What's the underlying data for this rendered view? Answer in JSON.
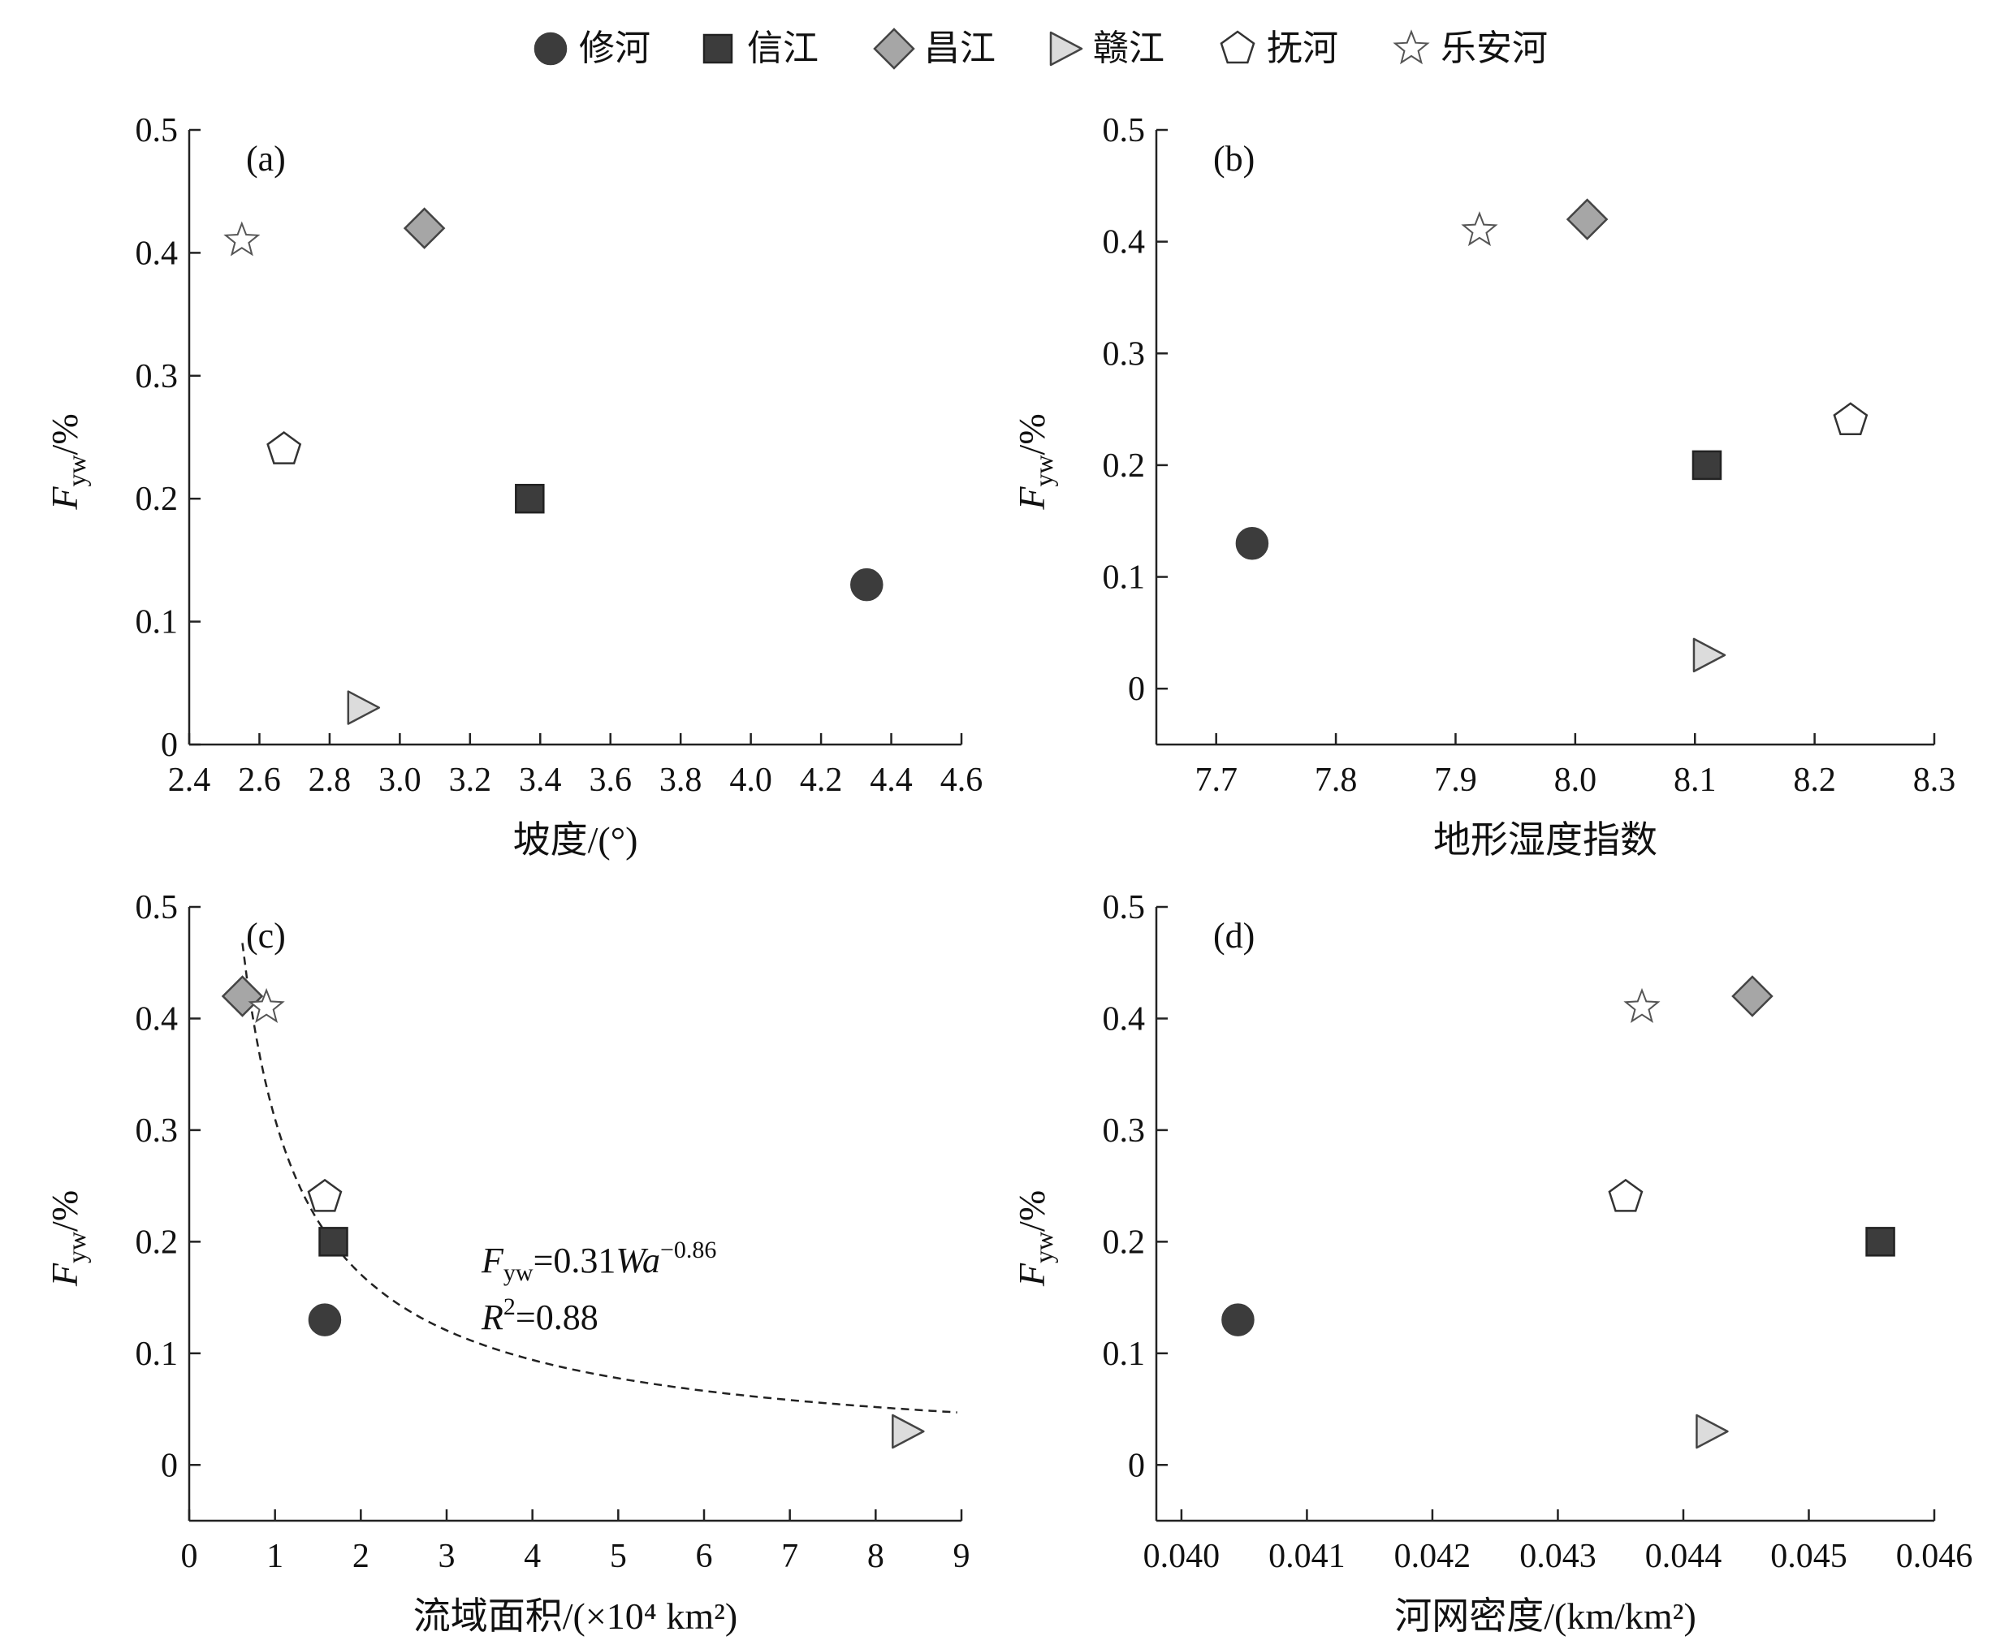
{
  "legend": [
    {
      "name": "修河",
      "marker": "circle",
      "fill": "#3c3c3c",
      "stroke": "#3c3c3c"
    },
    {
      "name": "信江",
      "marker": "square",
      "fill": "#3c3c3c",
      "stroke": "#222222"
    },
    {
      "name": "昌江",
      "marker": "diamond",
      "fill": "#a6a6a6",
      "stroke": "#444444"
    },
    {
      "name": "赣江",
      "marker": "triangle-right",
      "fill": "#dcdcdc",
      "stroke": "#444444"
    },
    {
      "name": "抚河",
      "marker": "pentagon",
      "fill": "#ffffff",
      "stroke": "#333333"
    },
    {
      "name": "乐安河",
      "marker": "star",
      "fill": "#ffffff",
      "stroke": "#555555"
    }
  ],
  "chart_data": [
    {
      "type": "scatter",
      "panel_label": "(a)",
      "xlabel": "坡度/(°)",
      "ylabel_main": "F",
      "ylabel_sub": "yw",
      "ylabel_tail": "/%",
      "xlim": [
        2.4,
        4.6
      ],
      "ylim": [
        0,
        0.5
      ],
      "xticks": [
        "2.4",
        "2.6",
        "2.8",
        "3.0",
        "3.2",
        "3.4",
        "3.6",
        "3.8",
        "4.0",
        "4.2",
        "4.4",
        "4.6"
      ],
      "yticks": [
        "0",
        "0.1",
        "0.2",
        "0.3",
        "0.4",
        "0.5"
      ],
      "series": [
        {
          "name": "修河",
          "x": 4.33,
          "y": 0.13
        },
        {
          "name": "信江",
          "x": 3.37,
          "y": 0.2
        },
        {
          "name": "昌江",
          "x": 3.07,
          "y": 0.42
        },
        {
          "name": "赣江",
          "x": 2.89,
          "y": 0.03
        },
        {
          "name": "抚河",
          "x": 2.67,
          "y": 0.24
        },
        {
          "name": "乐安河",
          "x": 2.55,
          "y": 0.41
        }
      ]
    },
    {
      "type": "scatter",
      "panel_label": "(b)",
      "xlabel": "地形湿度指数",
      "ylabel_main": "F",
      "ylabel_sub": "yw",
      "ylabel_tail": "/%",
      "xlim": [
        7.65,
        8.3
      ],
      "ylim": [
        -0.05,
        0.5
      ],
      "xticks": [
        "7.7",
        "7.8",
        "7.9",
        "8.0",
        "8.1",
        "8.2",
        "8.3"
      ],
      "yticks": [
        "0",
        "0.1",
        "0.2",
        "0.3",
        "0.4",
        "0.5"
      ],
      "series": [
        {
          "name": "修河",
          "x": 7.73,
          "y": 0.13
        },
        {
          "name": "信江",
          "x": 8.11,
          "y": 0.2
        },
        {
          "name": "昌江",
          "x": 8.01,
          "y": 0.42
        },
        {
          "name": "赣江",
          "x": 8.11,
          "y": 0.03
        },
        {
          "name": "抚河",
          "x": 8.23,
          "y": 0.24
        },
        {
          "name": "乐安河",
          "x": 7.92,
          "y": 0.41
        }
      ]
    },
    {
      "type": "scatter",
      "panel_label": "(c)",
      "xlabel": "流域面积/(×10⁴ km²)",
      "ylabel_main": "F",
      "ylabel_sub": "yw",
      "ylabel_tail": "/%",
      "xlim": [
        0,
        9
      ],
      "ylim": [
        -0.05,
        0.5
      ],
      "xticks": [
        "0",
        "1",
        "2",
        "3",
        "4",
        "5",
        "6",
        "7",
        "8",
        "9"
      ],
      "yticks": [
        "0",
        "0.1",
        "0.2",
        "0.3",
        "0.4",
        "0.5"
      ],
      "series": [
        {
          "name": "修河",
          "x": 1.58,
          "y": 0.13
        },
        {
          "name": "信江",
          "x": 1.68,
          "y": 0.2
        },
        {
          "name": "昌江",
          "x": 0.62,
          "y": 0.42
        },
        {
          "name": "赣江",
          "x": 8.35,
          "y": 0.03
        },
        {
          "name": "抚河",
          "x": 1.58,
          "y": 0.24
        },
        {
          "name": "乐安河",
          "x": 0.9,
          "y": 0.41
        }
      ],
      "fit": {
        "a": 0.31,
        "b": -0.86,
        "x_from": 0.62,
        "x_to": 8.95
      },
      "equation": {
        "main": "F",
        "sub": "yw",
        "mid": "=0.31",
        "var": "Wa",
        "exp": "−0.86"
      },
      "r2": {
        "main": "R",
        "sup": "2",
        "rest": "=0.88"
      }
    },
    {
      "type": "scatter",
      "panel_label": "(d)",
      "xlabel": "河网密度/(km/km²)",
      "ylabel_main": "F",
      "ylabel_sub": "yw",
      "ylabel_tail": "/%",
      "xlim": [
        0.0398,
        0.046
      ],
      "ylim": [
        -0.05,
        0.5
      ],
      "xticks": [
        "0.040",
        "0.041",
        "0.042",
        "0.043",
        "0.044",
        "0.045",
        "0.046"
      ],
      "yticks": [
        "0",
        "0.1",
        "0.2",
        "0.3",
        "0.4",
        "0.5"
      ],
      "series": [
        {
          "name": "修河",
          "x": 0.04045,
          "y": 0.13
        },
        {
          "name": "信江",
          "x": 0.04557,
          "y": 0.2
        },
        {
          "name": "昌江",
          "x": 0.04455,
          "y": 0.42
        },
        {
          "name": "赣江",
          "x": 0.04421,
          "y": 0.03
        },
        {
          "name": "抚河",
          "x": 0.04354,
          "y": 0.24
        },
        {
          "name": "乐安河",
          "x": 0.04367,
          "y": 0.41
        }
      ]
    }
  ]
}
